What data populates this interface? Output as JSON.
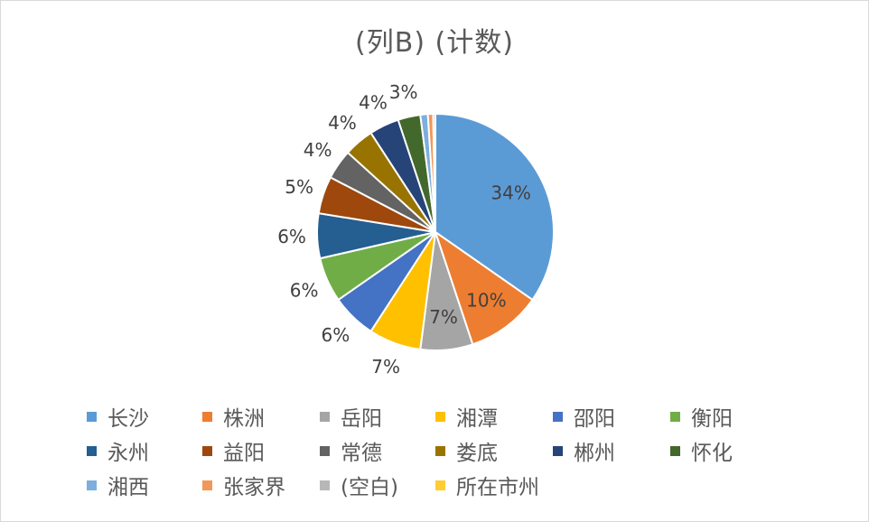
{
  "chart_data": {
    "type": "pie",
    "title": "(列B) (计数)",
    "start_angle_deg": 0,
    "direction": "clockwise",
    "legend_placement": "bottom",
    "categories": [
      "长沙",
      "株洲",
      "岳阳",
      "湘潭",
      "邵阳",
      "衡阳",
      "永州",
      "益阳",
      "常德",
      "娄底",
      "郴州",
      "怀化",
      "湘西",
      "张家界",
      "(空白)",
      "所在市州"
    ],
    "values": [
      34,
      10,
      7,
      7,
      6,
      6,
      6,
      5,
      4,
      4,
      4,
      3,
      1,
      0.7,
      0.3,
      0
    ],
    "labels": [
      "34%",
      "10%",
      "7%",
      "7%",
      "6%",
      "6%",
      "6%",
      "5%",
      "4%",
      "4%",
      "4%",
      "3%",
      "",
      "",
      "",
      ""
    ],
    "colors": [
      "#5B9BD5",
      "#ED7D31",
      "#A5A5A5",
      "#FFC000",
      "#4472C4",
      "#70AD47",
      "#255E91",
      "#9E480E",
      "#636363",
      "#997300",
      "#264478",
      "#43682B",
      "#7CAFDD",
      "#F1975A",
      "#B7B7B7",
      "#FFCD33"
    ]
  }
}
